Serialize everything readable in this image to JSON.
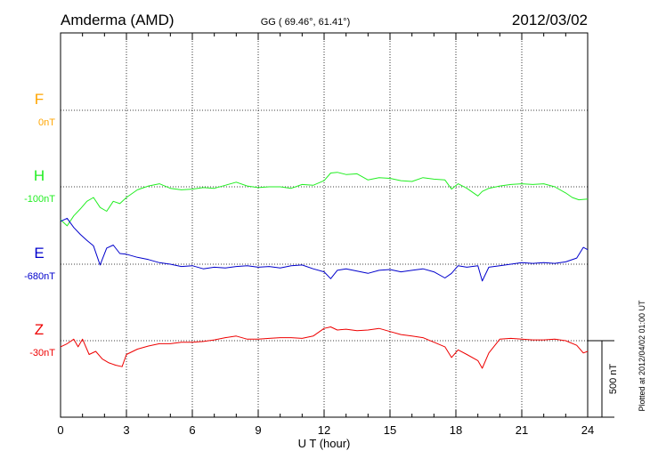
{
  "header": {
    "station": "Amderma (AMD)",
    "coords": "GG ( 69.46°,  61.41°)",
    "date": "2012/03/02"
  },
  "side_note": "Plotted at 2012/04/02 01:00 UT",
  "scale_label": "500 nT",
  "chart_data": {
    "type": "line",
    "xlabel": "U T (hour)",
    "xlim": [
      0,
      24
    ],
    "x_ticks": [
      0,
      3,
      6,
      9,
      12,
      15,
      18,
      21,
      24
    ],
    "grid": true,
    "series": [
      {
        "name": "F",
        "baseline": "0nT",
        "color": "#ffa500",
        "x": [],
        "y": []
      },
      {
        "name": "H",
        "baseline": "-100nT",
        "color": "#22ee22",
        "x": [
          0,
          0.3,
          0.6,
          0.9,
          1.2,
          1.5,
          1.8,
          2.1,
          2.4,
          2.7,
          3.0,
          3.5,
          4.0,
          4.5,
          5.0,
          5.5,
          6.0,
          6.5,
          7.0,
          7.5,
          8.0,
          8.5,
          9.0,
          9.5,
          10.0,
          10.5,
          11.0,
          11.5,
          12.0,
          12.3,
          12.6,
          13.0,
          13.5,
          14.0,
          14.5,
          15.0,
          15.5,
          16.0,
          16.5,
          17.0,
          17.5,
          17.8,
          18.1,
          18.5,
          19.0,
          19.2,
          19.5,
          20.0,
          20.5,
          21.0,
          21.5,
          22.0,
          22.5,
          23.0,
          23.3,
          23.6,
          24.0
        ],
        "y": [
          -215,
          -255,
          -190,
          -145,
          -95,
          -70,
          -135,
          -160,
          -95,
          -110,
          -70,
          -20,
          5,
          20,
          -10,
          -20,
          -15,
          -5,
          -10,
          10,
          30,
          5,
          -5,
          0,
          0,
          -10,
          15,
          10,
          40,
          90,
          95,
          80,
          85,
          45,
          60,
          55,
          40,
          35,
          60,
          50,
          45,
          -15,
          20,
          -10,
          -60,
          -30,
          -10,
          5,
          15,
          20,
          15,
          20,
          0,
          -40,
          -70,
          -85,
          -80
        ]
      },
      {
        "name": "E",
        "baseline": "-680nT",
        "color": "#0000cc",
        "x": [
          0,
          0.3,
          0.6,
          0.9,
          1.2,
          1.5,
          1.8,
          2.1,
          2.4,
          2.7,
          3.0,
          3.5,
          4.0,
          4.5,
          5.0,
          5.5,
          6.0,
          6.5,
          7.0,
          7.5,
          8.0,
          8.5,
          9.0,
          9.5,
          10.0,
          10.5,
          11.0,
          11.5,
          12.0,
          12.3,
          12.6,
          13.0,
          13.5,
          14.0,
          14.5,
          15.0,
          15.5,
          16.0,
          16.5,
          17.0,
          17.5,
          17.8,
          18.1,
          18.5,
          19.0,
          19.2,
          19.5,
          20.0,
          20.5,
          21.0,
          21.5,
          22.0,
          22.5,
          23.0,
          23.5,
          23.8,
          24.0
        ],
        "y": [
          280,
          300,
          240,
          195,
          155,
          120,
          -5,
          105,
          125,
          70,
          65,
          45,
          30,
          10,
          0,
          -15,
          -10,
          -30,
          -20,
          -25,
          -15,
          -10,
          -20,
          -15,
          -25,
          -10,
          -5,
          -30,
          -50,
          -95,
          -40,
          -30,
          -45,
          -60,
          -40,
          -35,
          -50,
          -40,
          -30,
          -50,
          -90,
          -60,
          -10,
          -20,
          -10,
          -110,
          -20,
          -10,
          0,
          10,
          5,
          10,
          5,
          15,
          40,
          110,
          95
        ]
      },
      {
        "name": "Z",
        "baseline": "-30nT",
        "color": "#ee0000",
        "x": [
          0,
          0.3,
          0.6,
          0.8,
          1.0,
          1.3,
          1.6,
          1.9,
          2.2,
          2.5,
          2.8,
          3.0,
          3.5,
          4.0,
          4.5,
          5.0,
          5.5,
          6.0,
          6.5,
          7.0,
          7.5,
          8.0,
          8.5,
          9.0,
          9.5,
          10.0,
          10.5,
          11.0,
          11.5,
          12.0,
          12.3,
          12.6,
          13.0,
          13.5,
          14.0,
          14.5,
          15.0,
          15.5,
          16.0,
          16.5,
          17.0,
          17.5,
          17.8,
          18.1,
          18.5,
          19.0,
          19.2,
          19.5,
          20.0,
          20.5,
          21.0,
          21.5,
          22.0,
          22.5,
          23.0,
          23.5,
          23.8,
          24.0
        ],
        "y": [
          -40,
          -20,
          10,
          -40,
          10,
          -90,
          -70,
          -120,
          -145,
          -160,
          -170,
          -90,
          -55,
          -35,
          -20,
          -20,
          -10,
          -10,
          -5,
          5,
          20,
          30,
          10,
          10,
          15,
          20,
          20,
          15,
          30,
          80,
          90,
          70,
          75,
          65,
          70,
          80,
          60,
          40,
          30,
          20,
          -10,
          -40,
          -110,
          -60,
          -90,
          -130,
          -180,
          -80,
          10,
          15,
          10,
          5,
          5,
          10,
          0,
          -30,
          -80,
          -70
        ]
      }
    ]
  }
}
